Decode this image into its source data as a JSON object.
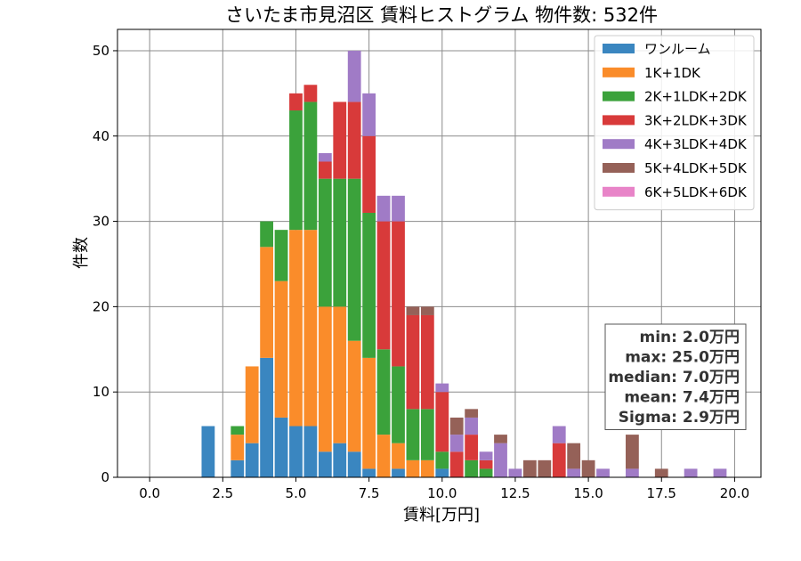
{
  "chart_data": {
    "type": "bar",
    "stacked": true,
    "title": "さいたま市見沼区 賃料ヒストグラム 物件数: 532件",
    "xlabel": "賃料[万円]",
    "ylabel": "件数",
    "xlim": [
      -1.1,
      20.9
    ],
    "ylim": [
      0,
      52.5
    ],
    "xticks": [
      0.0,
      2.5,
      5.0,
      7.5,
      10.0,
      12.5,
      15.0,
      17.5,
      20.0
    ],
    "xtick_labels": [
      "0.0",
      "2.5",
      "5.0",
      "7.5",
      "10.0",
      "12.5",
      "15.0",
      "17.5",
      "20.0"
    ],
    "yticks": [
      0,
      10,
      20,
      30,
      40,
      50
    ],
    "ytick_labels": [
      "0",
      "10",
      "20",
      "30",
      "40",
      "50"
    ],
    "grid": true,
    "legend_position": "top-right",
    "bin_width": 0.5,
    "x": [
      2.0,
      3.0,
      3.5,
      4.0,
      4.5,
      5.0,
      5.5,
      6.0,
      6.5,
      7.0,
      7.5,
      8.0,
      8.5,
      9.0,
      9.5,
      10.0,
      10.5,
      11.0,
      11.5,
      12.0,
      12.5,
      13.0,
      13.5,
      14.0,
      14.5,
      15.0,
      15.5,
      16.5,
      17.5,
      18.5,
      19.5
    ],
    "series": [
      {
        "name": "ワンルーム",
        "color": "#3a86c0",
        "values": [
          6,
          2,
          4,
          14,
          7,
          6,
          6,
          3,
          4,
          3,
          1,
          0,
          1,
          0,
          0,
          1,
          0,
          0,
          0,
          0,
          0,
          0,
          0,
          0,
          0,
          0,
          0,
          0,
          0,
          0,
          0
        ]
      },
      {
        "name": "1K+1DK",
        "color": "#fa8c2a",
        "values": [
          0,
          3,
          9,
          13,
          16,
          23,
          23,
          17,
          16,
          13,
          13,
          5,
          3,
          2,
          2,
          0,
          0,
          0,
          0,
          0,
          0,
          0,
          0,
          0,
          0,
          0,
          0,
          0,
          0,
          0,
          0
        ]
      },
      {
        "name": "2K+1LDK+2DK",
        "color": "#3ba23b",
        "values": [
          0,
          1,
          0,
          3,
          6,
          14,
          15,
          15,
          15,
          19,
          17,
          10,
          9,
          6,
          6,
          2,
          0,
          2,
          1,
          0,
          0,
          0,
          0,
          0,
          0,
          0,
          0,
          0,
          0,
          0,
          0
        ]
      },
      {
        "name": "3K+2LDK+3DK",
        "color": "#d83a3a",
        "values": [
          0,
          0,
          0,
          0,
          0,
          2,
          2,
          2,
          9,
          9,
          9,
          15,
          17,
          11,
          11,
          7,
          3,
          3,
          1,
          0,
          0,
          0,
          0,
          4,
          0,
          0,
          0,
          0,
          0,
          0,
          0
        ]
      },
      {
        "name": "4K+3LDK+4DK",
        "color": "#a07bc6",
        "values": [
          0,
          0,
          0,
          0,
          0,
          0,
          0,
          1,
          0,
          6,
          5,
          3,
          3,
          0,
          0,
          1,
          2,
          2,
          1,
          4,
          1,
          0,
          0,
          2,
          1,
          0,
          1,
          1,
          0,
          1,
          1
        ]
      },
      {
        "name": "5K+4LDK+5DK",
        "color": "#956158",
        "values": [
          0,
          0,
          0,
          0,
          0,
          0,
          0,
          0,
          0,
          0,
          0,
          0,
          0,
          1,
          1,
          0,
          2,
          1,
          0,
          1,
          0,
          2,
          2,
          0,
          3,
          2,
          0,
          4,
          1,
          0,
          0
        ]
      },
      {
        "name": "6K+5LDK+6DK",
        "color": "#e884c8",
        "values": [
          0,
          0,
          0,
          0,
          0,
          0,
          0,
          0,
          0,
          0,
          0,
          0,
          0,
          0,
          0,
          0,
          0,
          0,
          0,
          0,
          0,
          0,
          0,
          0,
          0,
          0,
          0,
          0,
          0,
          0,
          0
        ]
      }
    ],
    "stats_box": [
      "min: 2.0万円",
      "max: 25.0万円",
      "median: 7.0万円",
      "mean: 7.4万円",
      "Sigma: 2.9万円"
    ]
  }
}
